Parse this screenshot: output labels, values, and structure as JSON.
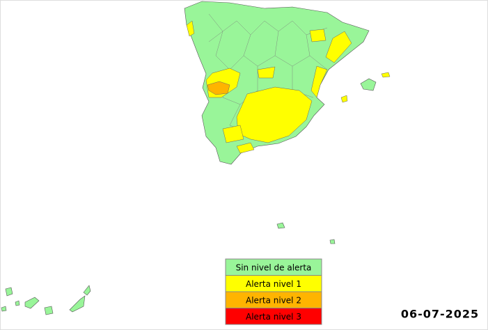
{
  "legend": [
    {
      "label": "Sin nivel de alerta",
      "color": "#99f599"
    },
    {
      "label": "Alerta nivel 1",
      "color": "#ffff00"
    },
    {
      "label": "Alerta nivel 2",
      "color": "#ffb400"
    },
    {
      "label": "Alerta nivel 3",
      "color": "#ff0000"
    }
  ],
  "date": "06-07-2025"
}
